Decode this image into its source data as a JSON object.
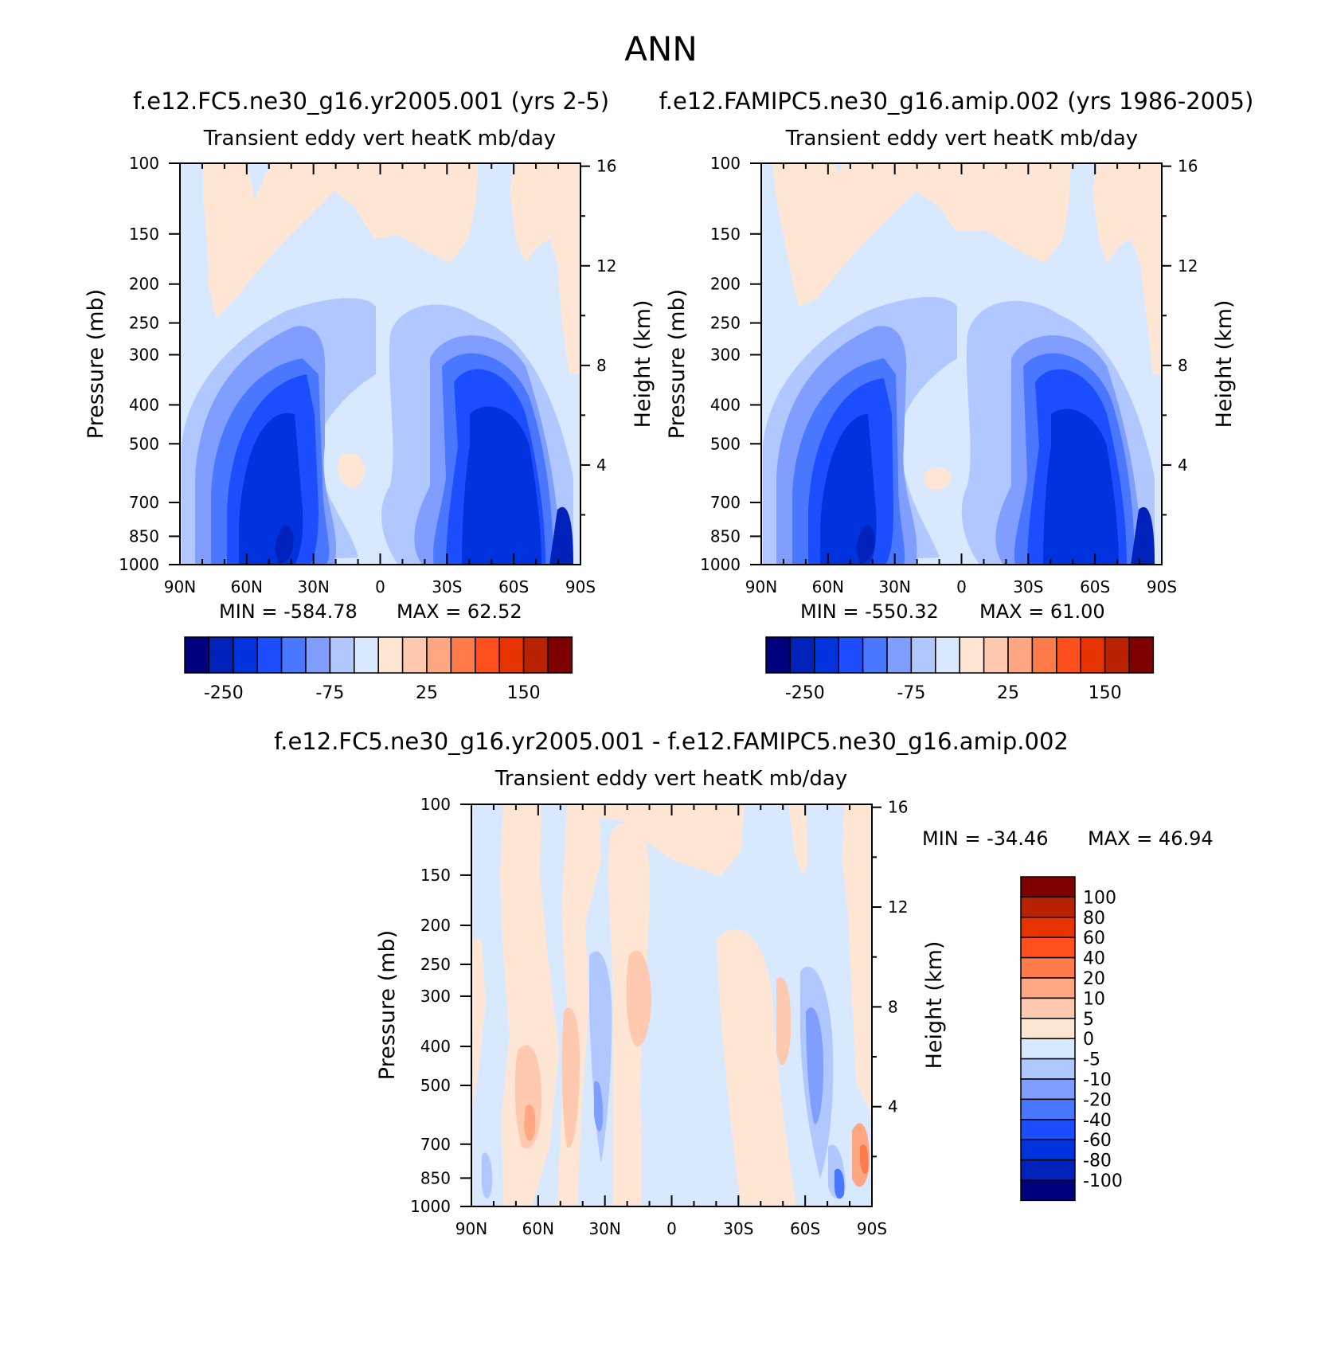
{
  "figure": {
    "title": "ANN",
    "colors": {
      "scale": [
        "#00007f",
        "#0022bb",
        "#0033dd",
        "#1c4dff",
        "#4a77ff",
        "#7f9eff",
        "#b0c7ff",
        "#d8e8ff",
        "#ffe6d4",
        "#ffc9b0",
        "#ffa683",
        "#ff7b4a",
        "#ff4f1c",
        "#e63300",
        "#b82200",
        "#7f0000"
      ]
    }
  },
  "chart_data": [
    {
      "id": "panel-test",
      "type": "heatmap",
      "title": "f.e12.FC5.ne30_g16.yr2005.001 (yrs 2-5)",
      "subtitle": "Transient eddy vert heatK mb/day",
      "xlabel": "",
      "ylabel": "Pressure (mb)",
      "y2label": "Height (km)",
      "x_ticks": [
        "90N",
        "60N",
        "30N",
        "0",
        "30S",
        "60S",
        "90S"
      ],
      "y_ticks": [
        "100",
        "150",
        "200",
        "250",
        "300",
        "400",
        "500",
        "700",
        "850",
        "1000"
      ],
      "y2_ticks": [
        "16",
        "12",
        "8",
        "4"
      ],
      "min_label": "MIN = -584.78",
      "max_label": "MAX = 62.52",
      "colorbar_labels": [
        "-250",
        "-75",
        "25",
        "150"
      ]
    },
    {
      "id": "panel-control",
      "type": "heatmap",
      "title": "f.e12.FAMIPC5.ne30_g16.amip.002 (yrs 1986-2005)",
      "subtitle": "Transient eddy vert heatK mb/day",
      "xlabel": "",
      "ylabel": "Pressure (mb)",
      "y2label": "Height (km)",
      "x_ticks": [
        "90N",
        "60N",
        "30N",
        "0",
        "30S",
        "60S",
        "90S"
      ],
      "y_ticks": [
        "100",
        "150",
        "200",
        "250",
        "300",
        "400",
        "500",
        "700",
        "850",
        "1000"
      ],
      "y2_ticks": [
        "16",
        "12",
        "8",
        "4"
      ],
      "min_label": "MIN = -550.32",
      "max_label": "MAX = 61.00",
      "colorbar_labels": [
        "-250",
        "-75",
        "25",
        "150"
      ]
    },
    {
      "id": "panel-diff",
      "type": "heatmap",
      "title": "f.e12.FC5.ne30_g16.yr2005.001 - f.e12.FAMIPC5.ne30_g16.amip.002",
      "subtitle": "Transient eddy vert heatK mb/day",
      "xlabel": "",
      "ylabel": "Pressure (mb)",
      "y2label": "Height (km)",
      "x_ticks": [
        "90N",
        "60N",
        "30N",
        "0",
        "30S",
        "60S",
        "90S"
      ],
      "y_ticks": [
        "100",
        "150",
        "200",
        "250",
        "300",
        "400",
        "500",
        "700",
        "850",
        "1000"
      ],
      "y2_ticks": [
        "16",
        "12",
        "8",
        "4"
      ],
      "min_label": "MIN = -34.46",
      "max_label": "MAX = 46.94",
      "colorbar_labels": [
        "100",
        "80",
        "60",
        "40",
        "20",
        "10",
        "5",
        "0",
        "-5",
        "-10",
        "-20",
        "-40",
        "-60",
        "-80",
        "-100"
      ]
    }
  ]
}
